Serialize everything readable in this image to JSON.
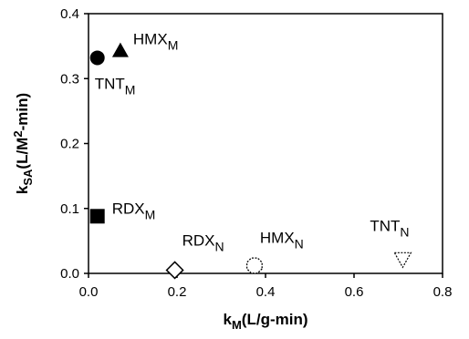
{
  "chart_data": {
    "type": "scatter",
    "xlabel": {
      "main": "k",
      "sub": "M",
      "rest": "(L/g-min)"
    },
    "ylabel": {
      "main": "k",
      "sub": "SA",
      "mid": "(L/M",
      "sup": "2",
      "rest": "-min)"
    },
    "xlim": [
      0,
      0.8
    ],
    "ylim": [
      0,
      0.4
    ],
    "xticks": [
      "0.0",
      "0.2",
      "0.4",
      "0.6",
      "0.8"
    ],
    "yticks": [
      "0.0",
      "0.1",
      "0.2",
      "0.3",
      "0.4"
    ],
    "points": [
      {
        "x": 0.02,
        "y": 0.332,
        "marker": "filled-circle",
        "label": {
          "main": "TNT",
          "sub": "M"
        }
      },
      {
        "x": 0.072,
        "y": 0.343,
        "marker": "filled-triangle",
        "label": {
          "main": "HMX",
          "sub": "M"
        }
      },
      {
        "x": 0.02,
        "y": 0.088,
        "marker": "filled-square",
        "label": {
          "main": "RDX",
          "sub": "M"
        }
      },
      {
        "x": 0.195,
        "y": 0.005,
        "marker": "open-diamond",
        "label": {
          "main": "RDX",
          "sub": "N"
        }
      },
      {
        "x": 0.375,
        "y": 0.012,
        "marker": "open-octagon",
        "label": {
          "main": "HMX",
          "sub": "N"
        }
      },
      {
        "x": 0.71,
        "y": 0.022,
        "marker": "open-down-triangle",
        "label": {
          "main": "TNT",
          "sub": "N"
        }
      }
    ]
  }
}
